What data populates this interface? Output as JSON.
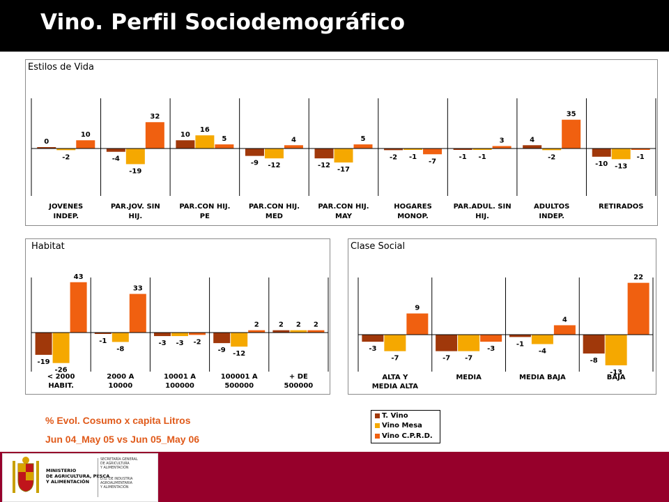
{
  "header": {
    "title": "Vino. Perfil Sociodemográfico"
  },
  "colors": {
    "t_vino": "#a0380a",
    "vino_mesa": "#f5a800",
    "vino_cprd": "#f06010",
    "header_bg": "#000000",
    "footer_bg": "#96002b",
    "note_text": "#e05a1a"
  },
  "chart_data": [
    {
      "id": "estilos",
      "type": "bar",
      "title": "Estilos de Vida",
      "categories": [
        [
          "JOVENES",
          "INDEP."
        ],
        [
          "PAR.JOV. SIN",
          "HIJ."
        ],
        [
          "PAR.CON HIJ.",
          "PE"
        ],
        [
          "PAR.CON HIJ.",
          "MED"
        ],
        [
          "PAR.CON HIJ.",
          "MAY"
        ],
        [
          "HOGARES",
          "MONOP."
        ],
        [
          "PAR.ADUL. SIN",
          "HIJ."
        ],
        [
          "ADULTOS",
          "INDEP."
        ],
        [
          "RETIRADOS",
          ""
        ]
      ],
      "series": [
        {
          "name": "T. Vino",
          "values": [
            0,
            -4,
            10,
            -9,
            -12,
            -2,
            -1,
            4,
            -10
          ]
        },
        {
          "name": "Vino Mesa",
          "values": [
            -2,
            -19,
            16,
            -12,
            -17,
            -1,
            -1,
            -2,
            -13
          ]
        },
        {
          "name": "Vino C.P.R.D.",
          "values": [
            10,
            32,
            5,
            4,
            5,
            -7,
            3,
            35,
            -1
          ]
        }
      ]
    },
    {
      "id": "habitat",
      "type": "bar",
      "title": "Habitat",
      "categories": [
        [
          "< 2000",
          "HABIT."
        ],
        [
          "2000 A",
          "10000"
        ],
        [
          "10001 A",
          "100000"
        ],
        [
          "100001 A",
          "500000"
        ],
        [
          "+ DE",
          "500000"
        ]
      ],
      "series": [
        {
          "name": "T. Vino",
          "values": [
            -19,
            -1,
            -3,
            -9,
            2
          ]
        },
        {
          "name": "Vino Mesa",
          "values": [
            -26,
            -8,
            -3,
            -12,
            2
          ]
        },
        {
          "name": "Vino C.P.R.D.",
          "values": [
            43,
            33,
            -2,
            2,
            2
          ]
        }
      ]
    },
    {
      "id": "clase",
      "type": "bar",
      "title": "Clase Social",
      "categories": [
        [
          "ALTA Y",
          "MEDIA ALTA"
        ],
        [
          "MEDIA",
          ""
        ],
        [
          "MEDIA BAJA",
          ""
        ],
        [
          "BAJA",
          ""
        ]
      ],
      "series": [
        {
          "name": "T. Vino",
          "values": [
            -3,
            -7,
            -1,
            -8
          ]
        },
        {
          "name": "Vino Mesa",
          "values": [
            -7,
            -7,
            -4,
            -13
          ]
        },
        {
          "name": "Vino C.P.R.D.",
          "values": [
            9,
            -3,
            4,
            22
          ]
        }
      ]
    }
  ],
  "legend": {
    "items": [
      "T. Vino",
      "Vino Mesa",
      "Vino C.P.R.D."
    ]
  },
  "notes": {
    "line1": "% Evol. Cosumo x capita Litros",
    "line2": "Jun 04_May 05 vs Jun 05_May 06"
  },
  "logo": {
    "ministry": [
      "MINISTERIO",
      "DE AGRICULTURA, PESCA",
      "Y ALIMENTACIÓN"
    ],
    "secretaria": [
      "SECRETARÍA GENERAL",
      "DE AGRICULTURA",
      "Y ALIMENTACIÓN"
    ],
    "dg": [
      "D.G. DE INDUSTRIA",
      "AGROALIMENTARIA",
      "Y ALIMENTACIÓN"
    ]
  }
}
